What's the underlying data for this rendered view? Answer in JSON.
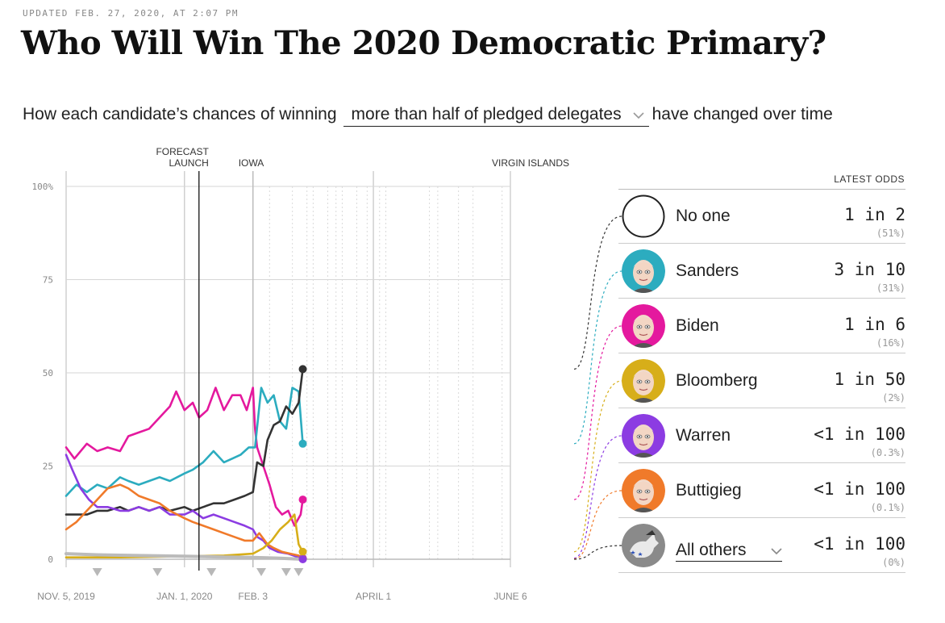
{
  "header": {
    "updated": "UPDATED FEB. 27, 2020, AT 2:07 PM",
    "title": "Who Will Win The 2020 Democratic Primary?",
    "subtitle_before": "How each candidate’s chances of winning",
    "dropdown_value": "more than half of pledged delegates",
    "subtitle_after": "have changed over time"
  },
  "legend": {
    "header": "LATEST ODDS",
    "candidates": [
      {
        "name": "No one",
        "odds": "1 in 2",
        "pct": "(51%)",
        "color": "#222222"
      },
      {
        "name": "Sanders",
        "odds": "3 in 10",
        "pct": "(31%)",
        "color": "#2cacbf"
      },
      {
        "name": "Biden",
        "odds": "1 in 6",
        "pct": "(16%)",
        "color": "#e4199e"
      },
      {
        "name": "Bloomberg",
        "odds": "1 in 50",
        "pct": "(2%)",
        "color": "#d7ae19"
      },
      {
        "name": "Warren",
        "odds": "<1 in 100",
        "pct": "(0.3%)",
        "color": "#8c3ce2"
      },
      {
        "name": "Buttigieg",
        "odds": "<1 in 100",
        "pct": "(0.1%)",
        "color": "#f07a2a"
      },
      {
        "name": "All others",
        "odds": "<1 in 100",
        "pct": "(0%)",
        "color": "#666666"
      }
    ]
  },
  "chart_data": {
    "type": "line",
    "ylabel": "",
    "xlabel": "",
    "ylim": [
      0,
      100
    ],
    "y_ticks": [
      "0",
      "25",
      "50",
      "75",
      "100%"
    ],
    "y_tick_values": [
      0,
      25,
      50,
      75,
      100
    ],
    "x_start": "2019-11-05",
    "x_end": "2020-06-06",
    "x_ticks": [
      {
        "label": "NOV. 5, 2019",
        "date": "2019-11-05"
      },
      {
        "label": "JAN. 1, 2020",
        "date": "2020-01-01"
      },
      {
        "label": "FEB. 3",
        "date": "2020-02-03"
      },
      {
        "label": "APRIL 1",
        "date": "2020-04-01"
      },
      {
        "label": "JUNE 6",
        "date": "2020-06-06"
      }
    ],
    "event_labels": [
      {
        "label": "FORECAST",
        "label2": "LAUNCH",
        "date": "2020-01-08"
      },
      {
        "label": "IOWA",
        "label2": "",
        "date": "2020-02-03"
      },
      {
        "label": "VIRGIN ISLANDS",
        "label2": "",
        "date": "2020-06-06"
      }
    ],
    "contest_dates": [
      "2020-02-11",
      "2020-02-22",
      "2020-02-29",
      "2020-03-03",
      "2020-03-10",
      "2020-03-14",
      "2020-03-17",
      "2020-03-24",
      "2020-03-29",
      "2020-04-04",
      "2020-04-07",
      "2020-04-28",
      "2020-05-02",
      "2020-05-12",
      "2020-05-19",
      "2020-06-02"
    ],
    "debate_dates": [
      "2019-11-20",
      "2019-12-19",
      "2020-01-14",
      "2020-02-07",
      "2020-02-19",
      "2020-02-25"
    ],
    "series": [
      {
        "name": "Biden",
        "color": "#e4199e",
        "endpoint": true,
        "points": [
          [
            "2019-11-05",
            30
          ],
          [
            "2019-11-09",
            27
          ],
          [
            "2019-11-15",
            31
          ],
          [
            "2019-11-20",
            29
          ],
          [
            "2019-11-25",
            30
          ],
          [
            "2019-12-01",
            29
          ],
          [
            "2019-12-05",
            33
          ],
          [
            "2019-12-10",
            34
          ],
          [
            "2019-12-15",
            35
          ],
          [
            "2019-12-20",
            38
          ],
          [
            "2019-12-25",
            41
          ],
          [
            "2019-12-28",
            45
          ],
          [
            "2020-01-01",
            40
          ],
          [
            "2020-01-05",
            42
          ],
          [
            "2020-01-08",
            38
          ],
          [
            "2020-01-12",
            40
          ],
          [
            "2020-01-16",
            46
          ],
          [
            "2020-01-20",
            40
          ],
          [
            "2020-01-24",
            44
          ],
          [
            "2020-01-28",
            44
          ],
          [
            "2020-01-31",
            40
          ],
          [
            "2020-02-03",
            46
          ],
          [
            "2020-02-04",
            35
          ],
          [
            "2020-02-05",
            30
          ],
          [
            "2020-02-08",
            25
          ],
          [
            "2020-02-11",
            20
          ],
          [
            "2020-02-14",
            14
          ],
          [
            "2020-02-17",
            12
          ],
          [
            "2020-02-20",
            13
          ],
          [
            "2020-02-23",
            9
          ],
          [
            "2020-02-26",
            12
          ],
          [
            "2020-02-27",
            16
          ]
        ]
      },
      {
        "name": "Sanders",
        "color": "#2cacbf",
        "endpoint": true,
        "points": [
          [
            "2019-11-05",
            17
          ],
          [
            "2019-11-10",
            20
          ],
          [
            "2019-11-15",
            18
          ],
          [
            "2019-11-20",
            20
          ],
          [
            "2019-11-25",
            19
          ],
          [
            "2019-12-01",
            22
          ],
          [
            "2019-12-05",
            21
          ],
          [
            "2019-12-10",
            20
          ],
          [
            "2019-12-15",
            21
          ],
          [
            "2019-12-20",
            22
          ],
          [
            "2019-12-25",
            21
          ],
          [
            "2020-01-01",
            23
          ],
          [
            "2020-01-05",
            24
          ],
          [
            "2020-01-10",
            26
          ],
          [
            "2020-01-15",
            29
          ],
          [
            "2020-01-20",
            26
          ],
          [
            "2020-01-24",
            27
          ],
          [
            "2020-01-28",
            28
          ],
          [
            "2020-02-01",
            30
          ],
          [
            "2020-02-04",
            30
          ],
          [
            "2020-02-07",
            46
          ],
          [
            "2020-02-10",
            42
          ],
          [
            "2020-02-13",
            44
          ],
          [
            "2020-02-16",
            37
          ],
          [
            "2020-02-19",
            35
          ],
          [
            "2020-02-22",
            46
          ],
          [
            "2020-02-25",
            45
          ],
          [
            "2020-02-27",
            31
          ]
        ]
      },
      {
        "name": "No one",
        "color": "#333333",
        "endpoint": true,
        "points": [
          [
            "2019-11-05",
            12
          ],
          [
            "2019-11-10",
            12
          ],
          [
            "2019-11-15",
            12
          ],
          [
            "2019-11-20",
            13
          ],
          [
            "2019-11-25",
            13
          ],
          [
            "2019-12-01",
            14
          ],
          [
            "2019-12-05",
            13
          ],
          [
            "2019-12-10",
            14
          ],
          [
            "2019-12-15",
            13
          ],
          [
            "2019-12-20",
            14
          ],
          [
            "2019-12-25",
            13
          ],
          [
            "2020-01-01",
            14
          ],
          [
            "2020-01-05",
            13
          ],
          [
            "2020-01-10",
            14
          ],
          [
            "2020-01-15",
            15
          ],
          [
            "2020-01-20",
            15
          ],
          [
            "2020-01-25",
            16
          ],
          [
            "2020-01-30",
            17
          ],
          [
            "2020-02-03",
            18
          ],
          [
            "2020-02-05",
            26
          ],
          [
            "2020-02-08",
            25
          ],
          [
            "2020-02-10",
            32
          ],
          [
            "2020-02-13",
            36
          ],
          [
            "2020-02-16",
            37
          ],
          [
            "2020-02-19",
            41
          ],
          [
            "2020-02-22",
            39
          ],
          [
            "2020-02-25",
            42
          ],
          [
            "2020-02-27",
            51
          ]
        ]
      },
      {
        "name": "Warren",
        "color": "#8c3ce2",
        "endpoint": true,
        "points": [
          [
            "2019-11-05",
            28
          ],
          [
            "2019-11-08",
            24
          ],
          [
            "2019-11-12",
            19
          ],
          [
            "2019-11-16",
            16
          ],
          [
            "2019-11-20",
            14
          ],
          [
            "2019-11-25",
            14
          ],
          [
            "2019-12-01",
            13
          ],
          [
            "2019-12-05",
            13
          ],
          [
            "2019-12-10",
            14
          ],
          [
            "2019-12-15",
            13
          ],
          [
            "2019-12-20",
            14
          ],
          [
            "2019-12-25",
            12
          ],
          [
            "2020-01-01",
            12
          ],
          [
            "2020-01-05",
            13
          ],
          [
            "2020-01-10",
            11
          ],
          [
            "2020-01-15",
            12
          ],
          [
            "2020-01-20",
            11
          ],
          [
            "2020-01-25",
            10
          ],
          [
            "2020-01-30",
            9
          ],
          [
            "2020-02-03",
            8
          ],
          [
            "2020-02-05",
            6
          ],
          [
            "2020-02-08",
            5
          ],
          [
            "2020-02-11",
            3
          ],
          [
            "2020-02-15",
            2
          ],
          [
            "2020-02-20",
            1.5
          ],
          [
            "2020-02-25",
            0.5
          ],
          [
            "2020-02-27",
            0.3
          ]
        ]
      },
      {
        "name": "Buttigieg",
        "color": "#f07a2a",
        "endpoint": true,
        "points": [
          [
            "2019-11-05",
            8
          ],
          [
            "2019-11-10",
            10
          ],
          [
            "2019-11-15",
            13
          ],
          [
            "2019-11-20",
            16
          ],
          [
            "2019-11-25",
            19
          ],
          [
            "2019-12-01",
            20
          ],
          [
            "2019-12-05",
            19
          ],
          [
            "2019-12-10",
            17
          ],
          [
            "2019-12-15",
            16
          ],
          [
            "2019-12-20",
            15
          ],
          [
            "2019-12-25",
            13
          ],
          [
            "2020-01-01",
            11
          ],
          [
            "2020-01-05",
            10
          ],
          [
            "2020-01-10",
            9
          ],
          [
            "2020-01-15",
            8
          ],
          [
            "2020-01-20",
            7
          ],
          [
            "2020-01-25",
            6
          ],
          [
            "2020-01-30",
            5
          ],
          [
            "2020-02-03",
            5
          ],
          [
            "2020-02-06",
            7
          ],
          [
            "2020-02-10",
            4
          ],
          [
            "2020-02-13",
            3
          ],
          [
            "2020-02-17",
            2
          ],
          [
            "2020-02-21",
            1.5
          ],
          [
            "2020-02-25",
            1
          ],
          [
            "2020-02-27",
            0.1
          ]
        ]
      },
      {
        "name": "Bloomberg",
        "color": "#d7ae19",
        "endpoint": true,
        "points": [
          [
            "2019-11-05",
            0.5
          ],
          [
            "2019-12-01",
            0.5
          ],
          [
            "2020-01-01",
            0.8
          ],
          [
            "2020-01-20",
            1
          ],
          [
            "2020-02-03",
            1.5
          ],
          [
            "2020-02-08",
            3
          ],
          [
            "2020-02-12",
            5
          ],
          [
            "2020-02-16",
            8
          ],
          [
            "2020-02-20",
            10
          ],
          [
            "2020-02-23",
            12
          ],
          [
            "2020-02-25",
            4
          ],
          [
            "2020-02-27",
            2
          ]
        ]
      },
      {
        "name": "All others",
        "color": "#bbbbbb",
        "endpoint": true,
        "points": [
          [
            "2019-11-05",
            1.5
          ],
          [
            "2019-11-20",
            1.2
          ],
          [
            "2019-12-10",
            1
          ],
          [
            "2020-01-01",
            0.8
          ],
          [
            "2020-01-20",
            0.6
          ],
          [
            "2020-02-03",
            0.5
          ],
          [
            "2020-02-15",
            0.3
          ],
          [
            "2020-02-27",
            0
          ]
        ]
      }
    ]
  }
}
